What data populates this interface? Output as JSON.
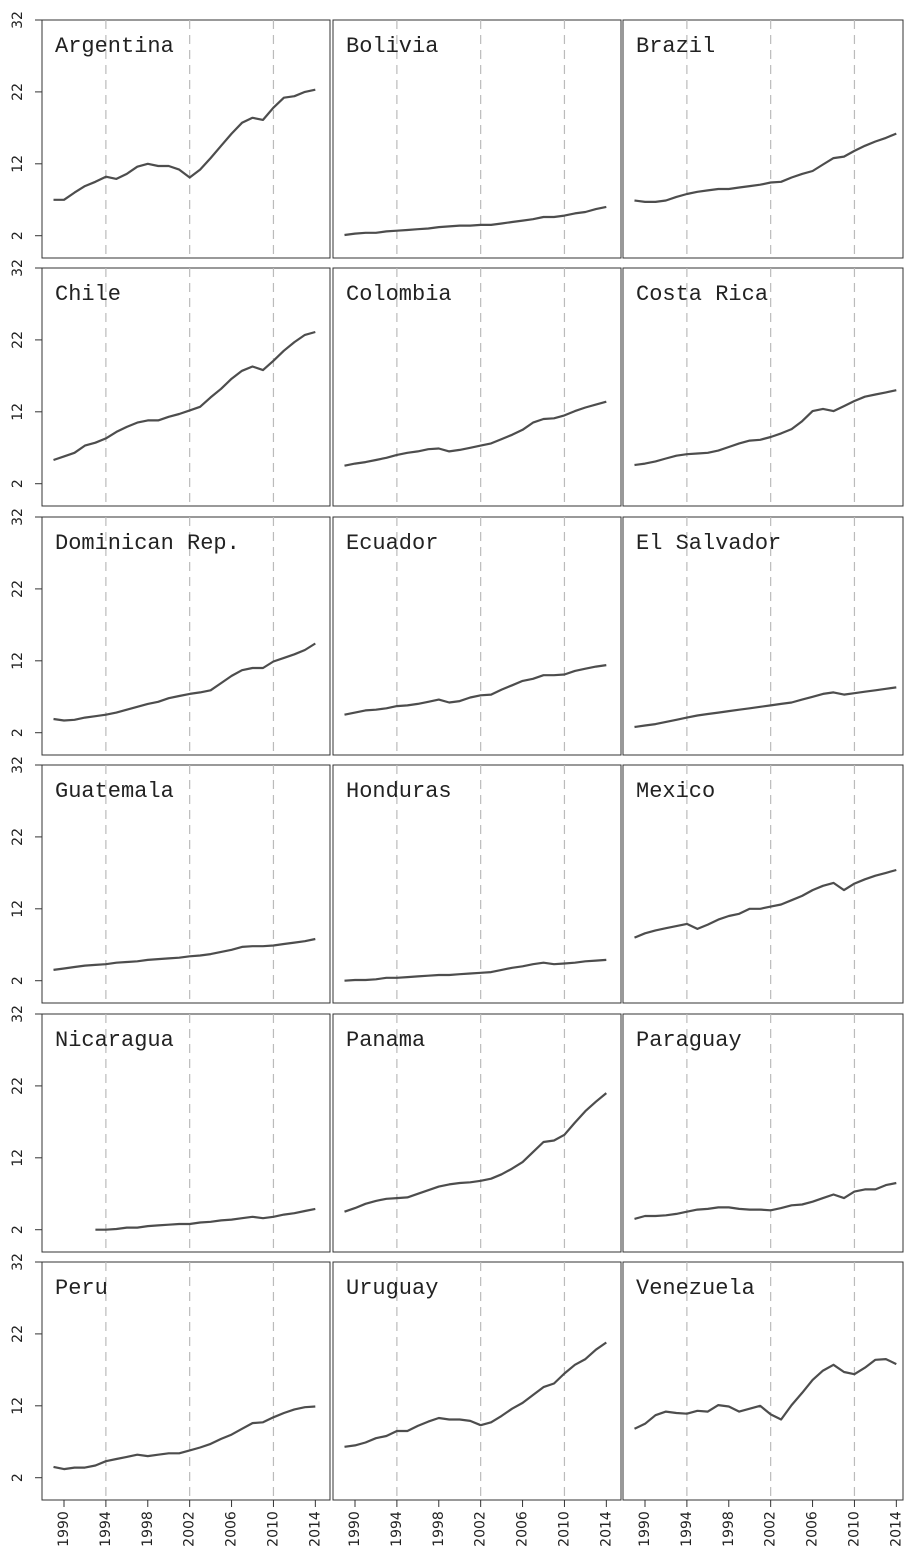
{
  "chart_data": [
    {
      "type": "line",
      "title": "Argentina",
      "color": "#4d4d4d",
      "x": [
        1989,
        1990,
        1991,
        1992,
        1993,
        1994,
        1995,
        1996,
        1997,
        1998,
        1999,
        2000,
        2001,
        2002,
        2003,
        2004,
        2005,
        2006,
        2007,
        2008,
        2009,
        2010,
        2011,
        2012,
        2013,
        2014
      ],
      "values": [
        7.0,
        7.0,
        8.0,
        8.9,
        9.5,
        10.2,
        9.9,
        10.6,
        11.6,
        12.0,
        11.7,
        11.7,
        11.2,
        10.1,
        11.2,
        12.8,
        14.5,
        16.2,
        17.7,
        18.4,
        18.1,
        19.8,
        21.2,
        21.4,
        22.0,
        22.3
      ],
      "xlim": [
        1987.9,
        2015.4
      ],
      "ylim": [
        -1.1,
        32
      ],
      "yticks": [
        2,
        12,
        22,
        32
      ],
      "vlines": [
        1994,
        2002,
        2010
      ]
    },
    {
      "type": "line",
      "title": "Bolivia",
      "color": "#4d4d4d",
      "x": [
        1989,
        1990,
        1991,
        1992,
        1993,
        1994,
        1995,
        1996,
        1997,
        1998,
        1999,
        2000,
        2001,
        2002,
        2003,
        2004,
        2005,
        2006,
        2007,
        2008,
        2009,
        2010,
        2011,
        2012,
        2013,
        2014
      ],
      "values": [
        2.1,
        2.3,
        2.4,
        2.4,
        2.6,
        2.7,
        2.8,
        2.9,
        3.0,
        3.2,
        3.3,
        3.4,
        3.4,
        3.5,
        3.5,
        3.7,
        3.9,
        4.1,
        4.3,
        4.6,
        4.6,
        4.8,
        5.1,
        5.3,
        5.7,
        6.0
      ],
      "xlim": [
        1987.9,
        2015.4
      ],
      "ylim": [
        -1.1,
        32
      ],
      "vlines": [
        1994,
        2002,
        2010
      ]
    },
    {
      "type": "line",
      "title": "Brazil",
      "color": "#4d4d4d",
      "x": [
        1989,
        1990,
        1991,
        1992,
        1993,
        1994,
        1995,
        1996,
        1997,
        1998,
        1999,
        2000,
        2001,
        2002,
        2003,
        2004,
        2005,
        2006,
        2007,
        2008,
        2009,
        2010,
        2011,
        2012,
        2013,
        2014
      ],
      "values": [
        6.9,
        6.7,
        6.7,
        6.9,
        7.4,
        7.8,
        8.1,
        8.3,
        8.5,
        8.5,
        8.7,
        8.9,
        9.1,
        9.4,
        9.5,
        10.1,
        10.6,
        11.0,
        11.9,
        12.8,
        13.0,
        13.8,
        14.5,
        15.1,
        15.6,
        16.2
      ],
      "xlim": [
        1987.9,
        2015.4
      ],
      "ylim": [
        -1.1,
        32
      ],
      "vlines": [
        1994,
        2002,
        2010
      ]
    },
    {
      "type": "line",
      "title": "Chile",
      "color": "#4d4d4d",
      "x": [
        1989,
        1990,
        1991,
        1992,
        1993,
        1994,
        1995,
        1996,
        1997,
        1998,
        1999,
        2000,
        2001,
        2002,
        2003,
        2004,
        2005,
        2006,
        2007,
        2008,
        2009,
        2010,
        2011,
        2012,
        2013,
        2014
      ],
      "values": [
        5.3,
        5.8,
        6.3,
        7.3,
        7.7,
        8.3,
        9.2,
        9.9,
        10.5,
        10.8,
        10.8,
        11.3,
        11.7,
        12.2,
        12.7,
        14.0,
        15.2,
        16.6,
        17.7,
        18.3,
        17.8,
        19.1,
        20.5,
        21.7,
        22.7,
        23.1
      ],
      "xlim": [
        1987.9,
        2015.4
      ],
      "ylim": [
        -1.1,
        32
      ],
      "yticks": [
        2,
        12,
        22,
        32
      ],
      "vlines": [
        1994,
        2002,
        2010
      ]
    },
    {
      "type": "line",
      "title": "Colombia",
      "color": "#4d4d4d",
      "x": [
        1989,
        1990,
        1991,
        1992,
        1993,
        1994,
        1995,
        1996,
        1997,
        1998,
        1999,
        2000,
        2001,
        2002,
        2003,
        2004,
        2005,
        2006,
        2007,
        2008,
        2009,
        2010,
        2011,
        2012,
        2013,
        2014
      ],
      "values": [
        4.5,
        4.8,
        5.0,
        5.3,
        5.6,
        6.0,
        6.3,
        6.5,
        6.8,
        6.9,
        6.5,
        6.7,
        7.0,
        7.3,
        7.6,
        8.2,
        8.8,
        9.5,
        10.5,
        11.0,
        11.1,
        11.5,
        12.1,
        12.6,
        13.0,
        13.4
      ],
      "xlim": [
        1987.9,
        2015.4
      ],
      "ylim": [
        -1.1,
        32
      ],
      "vlines": [
        1994,
        2002,
        2010
      ]
    },
    {
      "type": "line",
      "title": "Costa Rica",
      "color": "#4d4d4d",
      "x": [
        1989,
        1990,
        1991,
        1992,
        1993,
        1994,
        1995,
        1996,
        1997,
        1998,
        1999,
        2000,
        2001,
        2002,
        2003,
        2004,
        2005,
        2006,
        2007,
        2008,
        2009,
        2010,
        2011,
        2012,
        2013,
        2014
      ],
      "values": [
        4.6,
        4.8,
        5.1,
        5.5,
        5.9,
        6.1,
        6.2,
        6.3,
        6.6,
        7.1,
        7.6,
        8.0,
        8.1,
        8.5,
        9.0,
        9.6,
        10.7,
        12.1,
        12.4,
        12.1,
        12.8,
        13.5,
        14.1,
        14.4,
        14.7,
        15.0
      ],
      "xlim": [
        1987.9,
        2015.4
      ],
      "ylim": [
        -1.1,
        32
      ],
      "vlines": [
        1994,
        2002,
        2010
      ]
    },
    {
      "type": "line",
      "title": "Dominican Rep.",
      "color": "#4d4d4d",
      "x": [
        1989,
        1990,
        1991,
        1992,
        1993,
        1994,
        1995,
        1996,
        1997,
        1998,
        1999,
        2000,
        2001,
        2002,
        2003,
        2004,
        2005,
        2006,
        2007,
        2008,
        2009,
        2010,
        2011,
        2012,
        2013,
        2014
      ],
      "values": [
        3.9,
        3.7,
        3.8,
        4.1,
        4.3,
        4.5,
        4.8,
        5.2,
        5.6,
        6.0,
        6.3,
        6.8,
        7.1,
        7.4,
        7.6,
        7.9,
        8.9,
        9.9,
        10.7,
        11.0,
        11.0,
        11.9,
        12.4,
        12.9,
        13.5,
        14.4
      ],
      "xlim": [
        1987.9,
        2015.4
      ],
      "ylim": [
        -1.1,
        32
      ],
      "yticks": [
        2,
        12,
        22,
        32
      ],
      "vlines": [
        1994,
        2002,
        2010
      ]
    },
    {
      "type": "line",
      "title": "Ecuador",
      "color": "#4d4d4d",
      "x": [
        1989,
        1990,
        1991,
        1992,
        1993,
        1994,
        1995,
        1996,
        1997,
        1998,
        1999,
        2000,
        2001,
        2002,
        2003,
        2004,
        2005,
        2006,
        2007,
        2008,
        2009,
        2010,
        2011,
        2012,
        2013,
        2014
      ],
      "values": [
        4.5,
        4.8,
        5.1,
        5.2,
        5.4,
        5.7,
        5.8,
        6.0,
        6.3,
        6.6,
        6.2,
        6.4,
        6.9,
        7.2,
        7.3,
        8.0,
        8.6,
        9.2,
        9.5,
        10.0,
        10.0,
        10.1,
        10.6,
        10.9,
        11.2,
        11.4
      ],
      "xlim": [
        1987.9,
        2015.4
      ],
      "ylim": [
        -1.1,
        32
      ],
      "vlines": [
        1994,
        2002,
        2010
      ]
    },
    {
      "type": "line",
      "title": "El Salvador",
      "color": "#4d4d4d",
      "x": [
        1989,
        1990,
        1991,
        1992,
        1993,
        1994,
        1995,
        1996,
        1997,
        1998,
        1999,
        2000,
        2001,
        2002,
        2003,
        2004,
        2005,
        2006,
        2007,
        2008,
        2009,
        2010,
        2011,
        2012,
        2013,
        2014
      ],
      "values": [
        2.8,
        3.0,
        3.2,
        3.5,
        3.8,
        4.1,
        4.4,
        4.6,
        4.8,
        5.0,
        5.2,
        5.4,
        5.6,
        5.8,
        6.0,
        6.2,
        6.6,
        7.0,
        7.4,
        7.6,
        7.3,
        7.5,
        7.7,
        7.9,
        8.1,
        8.3
      ],
      "xlim": [
        1987.9,
        2015.4
      ],
      "ylim": [
        -1.1,
        32
      ],
      "vlines": [
        1994,
        2002,
        2010
      ]
    },
    {
      "type": "line",
      "title": "Guatemala",
      "color": "#4d4d4d",
      "x": [
        1989,
        1990,
        1991,
        1992,
        1993,
        1994,
        1995,
        1996,
        1997,
        1998,
        1999,
        2000,
        2001,
        2002,
        2003,
        2004,
        2005,
        2006,
        2007,
        2008,
        2009,
        2010,
        2011,
        2012,
        2013,
        2014
      ],
      "values": [
        3.5,
        3.7,
        3.9,
        4.1,
        4.2,
        4.3,
        4.5,
        4.6,
        4.7,
        4.9,
        5.0,
        5.1,
        5.2,
        5.4,
        5.5,
        5.7,
        6.0,
        6.3,
        6.7,
        6.8,
        6.8,
        6.9,
        7.1,
        7.3,
        7.5,
        7.8
      ],
      "xlim": [
        1987.9,
        2015.4
      ],
      "ylim": [
        -1.1,
        32
      ],
      "yticks": [
        2,
        12,
        22,
        32
      ],
      "vlines": [
        1994,
        2002,
        2010
      ]
    },
    {
      "type": "line",
      "title": "Honduras",
      "color": "#4d4d4d",
      "x": [
        1989,
        1990,
        1991,
        1992,
        1993,
        1994,
        1995,
        1996,
        1997,
        1998,
        1999,
        2000,
        2001,
        2002,
        2003,
        2004,
        2005,
        2006,
        2007,
        2008,
        2009,
        2010,
        2011,
        2012,
        2013,
        2014
      ],
      "values": [
        2.0,
        2.1,
        2.1,
        2.2,
        2.4,
        2.4,
        2.5,
        2.6,
        2.7,
        2.8,
        2.8,
        2.9,
        3.0,
        3.1,
        3.2,
        3.5,
        3.8,
        4.0,
        4.3,
        4.5,
        4.3,
        4.4,
        4.5,
        4.7,
        4.8,
        4.9
      ],
      "xlim": [
        1987.9,
        2015.4
      ],
      "ylim": [
        -1.1,
        32
      ],
      "vlines": [
        1994,
        2002,
        2010
      ]
    },
    {
      "type": "line",
      "title": "Mexico",
      "color": "#4d4d4d",
      "x": [
        1989,
        1990,
        1991,
        1992,
        1993,
        1994,
        1995,
        1996,
        1997,
        1998,
        1999,
        2000,
        2001,
        2002,
        2003,
        2004,
        2005,
        2006,
        2007,
        2008,
        2009,
        2010,
        2011,
        2012,
        2013,
        2014
      ],
      "values": [
        8.0,
        8.6,
        9.0,
        9.3,
        9.6,
        9.9,
        9.2,
        9.8,
        10.5,
        11.0,
        11.3,
        12.0,
        12.0,
        12.3,
        12.6,
        13.2,
        13.8,
        14.6,
        15.2,
        15.6,
        14.6,
        15.5,
        16.1,
        16.6,
        17.0,
        17.4
      ],
      "xlim": [
        1987.9,
        2015.4
      ],
      "ylim": [
        -1.1,
        32
      ],
      "vlines": [
        1994,
        2002,
        2010
      ]
    },
    {
      "type": "line",
      "title": "Nicaragua",
      "color": "#4d4d4d",
      "x": [
        1989,
        1990,
        1991,
        1992,
        1993,
        1994,
        1995,
        1996,
        1997,
        1998,
        1999,
        2000,
        2001,
        2002,
        2003,
        2004,
        2005,
        2006,
        2007,
        2008,
        2009,
        2010,
        2011,
        2012,
        2013,
        2014
      ],
      "values": [
        null,
        null,
        null,
        null,
        2.0,
        2.0,
        2.1,
        2.3,
        2.3,
        2.5,
        2.6,
        2.7,
        2.8,
        2.8,
        3.0,
        3.1,
        3.3,
        3.4,
        3.6,
        3.8,
        3.6,
        3.8,
        4.1,
        4.3,
        4.6,
        4.9
      ],
      "xlim": [
        1987.9,
        2015.4
      ],
      "ylim": [
        -1.1,
        32
      ],
      "yticks": [
        2,
        12,
        22,
        32
      ],
      "vlines": [
        1994,
        2002,
        2010
      ]
    },
    {
      "type": "line",
      "title": "Panama",
      "color": "#4d4d4d",
      "x": [
        1989,
        1990,
        1991,
        1992,
        1993,
        1994,
        1995,
        1996,
        1997,
        1998,
        1999,
        2000,
        2001,
        2002,
        2003,
        2004,
        2005,
        2006,
        2007,
        2008,
        2009,
        2010,
        2011,
        2012,
        2013,
        2014
      ],
      "values": [
        4.5,
        5.0,
        5.6,
        6.0,
        6.3,
        6.4,
        6.5,
        7.0,
        7.5,
        8.0,
        8.3,
        8.5,
        8.6,
        8.8,
        9.1,
        9.7,
        10.5,
        11.4,
        12.8,
        14.2,
        14.4,
        15.2,
        16.9,
        18.5,
        19.8,
        21.0
      ],
      "xlim": [
        1987.9,
        2015.4
      ],
      "ylim": [
        -1.1,
        32
      ],
      "vlines": [
        1994,
        2002,
        2010
      ]
    },
    {
      "type": "line",
      "title": "Paraguay",
      "color": "#4d4d4d",
      "x": [
        1989,
        1990,
        1991,
        1992,
        1993,
        1994,
        1995,
        1996,
        1997,
        1998,
        1999,
        2000,
        2001,
        2002,
        2003,
        2004,
        2005,
        2006,
        2007,
        2008,
        2009,
        2010,
        2011,
        2012,
        2013,
        2014
      ],
      "values": [
        3.5,
        3.9,
        3.9,
        4.0,
        4.2,
        4.5,
        4.8,
        4.9,
        5.1,
        5.1,
        4.9,
        4.8,
        4.8,
        4.7,
        5.0,
        5.4,
        5.5,
        5.9,
        6.4,
        6.9,
        6.4,
        7.3,
        7.6,
        7.6,
        8.2,
        8.5
      ],
      "xlim": [
        1987.9,
        2015.4
      ],
      "ylim": [
        -1.1,
        32
      ],
      "vlines": [
        1994,
        2002,
        2010
      ]
    },
    {
      "type": "line",
      "title": "Peru",
      "color": "#4d4d4d",
      "x": [
        1989,
        1990,
        1991,
        1992,
        1993,
        1994,
        1995,
        1996,
        1997,
        1998,
        1999,
        2000,
        2001,
        2002,
        2003,
        2004,
        2005,
        2006,
        2007,
        2008,
        2009,
        2010,
        2011,
        2012,
        2013,
        2014
      ],
      "values": [
        3.5,
        3.2,
        3.4,
        3.4,
        3.7,
        4.3,
        4.6,
        4.9,
        5.2,
        5.0,
        5.2,
        5.4,
        5.4,
        5.8,
        6.2,
        6.7,
        7.4,
        8.0,
        8.8,
        9.6,
        9.7,
        10.4,
        11.0,
        11.5,
        11.8,
        11.9
      ],
      "xlim": [
        1987.9,
        2015.4
      ],
      "ylim": [
        -1.1,
        32
      ],
      "yticks": [
        2,
        12,
        22,
        32
      ],
      "xticks": [
        1990,
        1994,
        1998,
        2002,
        2006,
        2010,
        2014
      ],
      "vlines": [
        1994,
        2002,
        2010
      ]
    },
    {
      "type": "line",
      "title": "Uruguay",
      "color": "#4d4d4d",
      "x": [
        1989,
        1990,
        1991,
        1992,
        1993,
        1994,
        1995,
        1996,
        1997,
        1998,
        1999,
        2000,
        2001,
        2002,
        2003,
        2004,
        2005,
        2006,
        2007,
        2008,
        2009,
        2010,
        2011,
        2012,
        2013,
        2014
      ],
      "values": [
        6.3,
        6.5,
        6.9,
        7.5,
        7.8,
        8.5,
        8.5,
        9.2,
        9.8,
        10.3,
        10.1,
        10.1,
        9.9,
        9.3,
        9.7,
        10.6,
        11.6,
        12.4,
        13.5,
        14.6,
        15.1,
        16.5,
        17.7,
        18.5,
        19.8,
        20.8
      ],
      "xlim": [
        1987.9,
        2015.4
      ],
      "ylim": [
        -1.1,
        32
      ],
      "xticks": [
        1990,
        1994,
        1998,
        2002,
        2006,
        2010,
        2014
      ],
      "vlines": [
        1994,
        2002,
        2010
      ]
    },
    {
      "type": "line",
      "title": "Venezuela",
      "color": "#4d4d4d",
      "x": [
        1989,
        1990,
        1991,
        1992,
        1993,
        1994,
        1995,
        1996,
        1997,
        1998,
        1999,
        2000,
        2001,
        2002,
        2003,
        2004,
        2005,
        2006,
        2007,
        2008,
        2009,
        2010,
        2011,
        2012,
        2013,
        2014
      ],
      "values": [
        8.8,
        9.5,
        10.7,
        11.2,
        11.0,
        10.9,
        11.3,
        11.2,
        12.1,
        11.9,
        11.2,
        11.6,
        12.0,
        10.8,
        10.1,
        12.1,
        13.8,
        15.6,
        16.9,
        17.7,
        16.7,
        16.4,
        17.3,
        18.4,
        18.5,
        17.8
      ],
      "xlim": [
        1987.9,
        2015.4
      ],
      "ylim": [
        -1.1,
        32
      ],
      "xticks": [
        1990,
        1994,
        1998,
        2002,
        2006,
        2010,
        2014
      ],
      "vlines": [
        1994,
        2002,
        2010
      ]
    }
  ]
}
